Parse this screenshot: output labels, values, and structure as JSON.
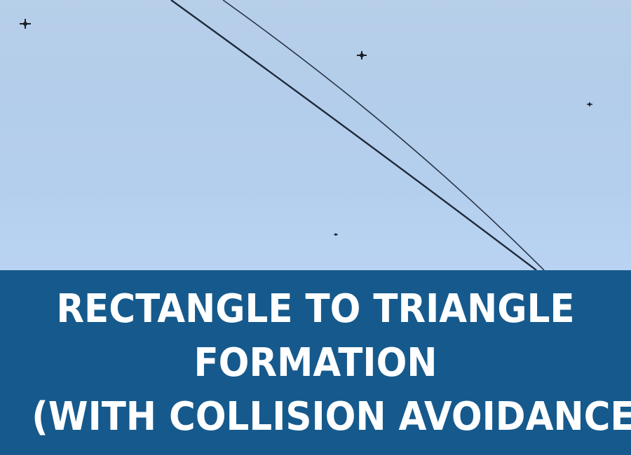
{
  "photo": {
    "subject": "drone-swarm-sky-photo",
    "sky_color": "#b5cfec",
    "wire_color": "#1d2a3a",
    "drone_color": "#1a1f28"
  },
  "caption": {
    "background_color": "#165a8d",
    "text_color": "#ffffff",
    "lines": [
      "RECTANGLE TO TRIANGLE",
      "FORMATION",
      "(WITH COLLISION AVOIDANCE)"
    ]
  }
}
